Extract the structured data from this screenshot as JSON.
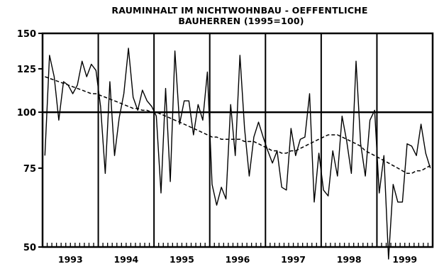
{
  "chart_data": {
    "type": "line",
    "title_line1": "RAUMINHALT IM NICHTWOHNBAU - OEFFENTLICHE",
    "title_line2": "BAUHERREN (1995=100)",
    "xlabel": "",
    "ylabel": "",
    "ylim": [
      50,
      150
    ],
    "yscale": "log",
    "y_ticks": [
      50,
      75,
      100,
      125,
      150
    ],
    "reference_line": 100,
    "years": [
      "1993",
      "1994",
      "1995",
      "1996",
      "1997",
      "1998",
      "1999"
    ],
    "months_per_year": 12,
    "grid": "vertical lines at year boundaries",
    "series": [
      {
        "style": "solid",
        "values": [
          80,
          134,
          120,
          96,
          117,
          115,
          110,
          115,
          130,
          120,
          128,
          124,
          103,
          73,
          117,
          80,
          97,
          110,
          139,
          108,
          101,
          112,
          106,
          103,
          98,
          66,
          113,
          70,
          137,
          94,
          106,
          106,
          89,
          104,
          96,
          123,
          69,
          62,
          68,
          64,
          104,
          80,
          134,
          92,
          72,
          88,
          95,
          88,
          82,
          77,
          82,
          68,
          67,
          92,
          80,
          87,
          88,
          110,
          63,
          81,
          67,
          65,
          82,
          72,
          98,
          86,
          73,
          130,
          85,
          72,
          96,
          101,
          66,
          80,
          47,
          69,
          63,
          63,
          85,
          84,
          80,
          94,
          81,
          75
        ]
      },
      {
        "style": "dashed",
        "values": [
          120,
          119,
          118,
          117,
          116,
          115,
          114,
          113,
          112,
          111,
          110,
          110,
          109,
          108,
          107,
          106,
          105,
          104,
          103,
          102,
          102,
          101,
          101,
          100,
          100,
          99,
          98,
          97,
          96,
          95,
          94,
          93,
          92,
          91,
          90,
          89,
          88,
          88,
          87,
          87,
          87,
          87,
          87,
          86,
          86,
          86,
          85,
          84,
          83,
          82,
          82,
          81,
          81,
          82,
          82,
          83,
          84,
          85,
          86,
          87,
          88,
          89,
          89,
          89,
          88,
          87,
          86,
          85,
          84,
          82,
          81,
          80,
          79,
          78,
          77,
          76,
          75,
          74,
          73,
          73,
          74,
          74,
          75,
          76
        ]
      }
    ]
  }
}
